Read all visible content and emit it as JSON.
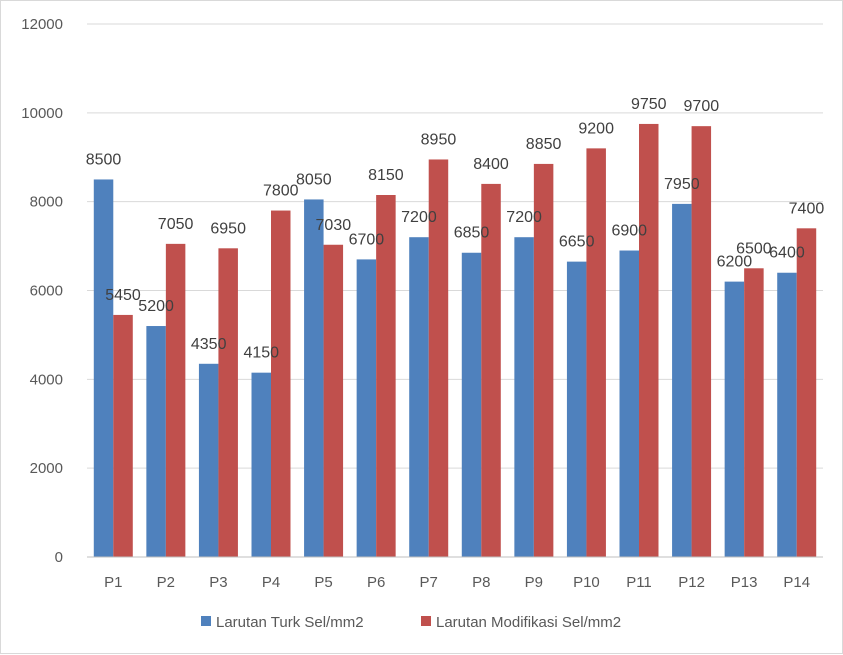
{
  "chart_data": {
    "type": "bar",
    "categories": [
      "P1",
      "P2",
      "P3",
      "P4",
      "P5",
      "P6",
      "P7",
      "P8",
      "P9",
      "P10",
      "P11",
      "P12",
      "P13",
      "P14"
    ],
    "series": [
      {
        "name": "Larutan Turk Sel/mm2",
        "color": "#4f81bd",
        "values": [
          8500,
          5200,
          4350,
          4150,
          8050,
          6700,
          7200,
          6850,
          7200,
          6650,
          6900,
          7950,
          6200,
          6400
        ]
      },
      {
        "name": "Larutan Modifikasi Sel/mm2",
        "color": "#c0504d",
        "values": [
          5450,
          7050,
          6950,
          7800,
          7030,
          8150,
          8950,
          8400,
          8850,
          9200,
          9750,
          9700,
          6500,
          7400
        ]
      }
    ],
    "ylim": [
      0,
      12000
    ],
    "yticks": [
      0,
      2000,
      4000,
      6000,
      8000,
      10000,
      12000
    ],
    "grid": true,
    "legend": "bottom",
    "title": "",
    "xlabel": "",
    "ylabel": ""
  }
}
